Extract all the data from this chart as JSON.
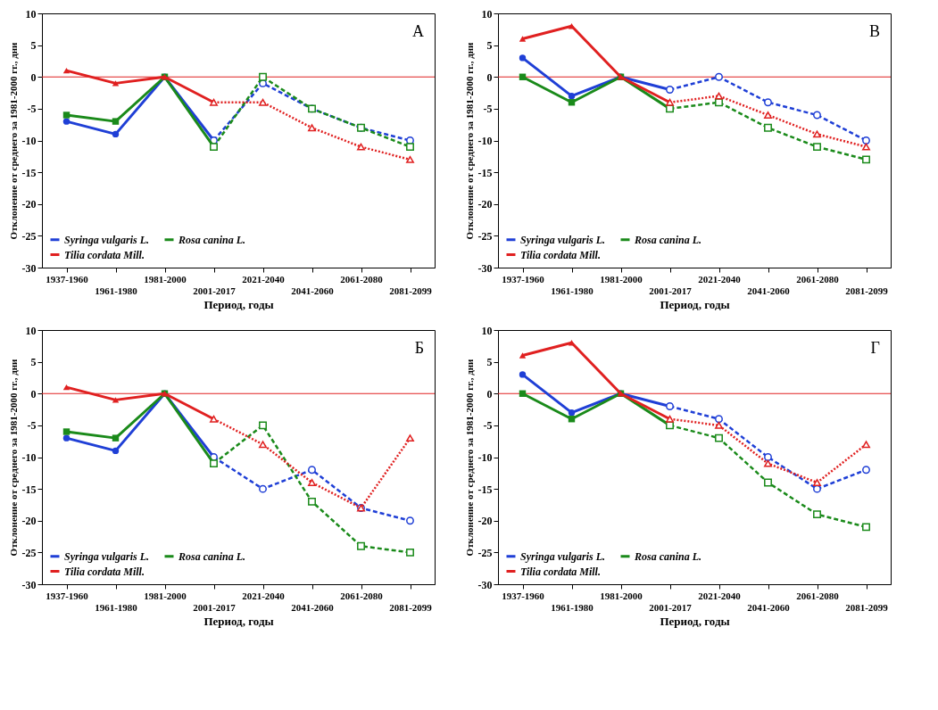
{
  "chart_data": [
    {
      "type": "line",
      "annotations": [
        "А"
      ],
      "xlabel": "Период, годы",
      "ylabel": "Отклонение от среднего за 1981-2000 гг., дни",
      "categories": [
        "1937-1960",
        "1961-1980",
        "1981-2000",
        "2001-2017",
        "2021-2040",
        "2041-2060",
        "2061-2080",
        "2081-2099"
      ],
      "ylim": [
        -30,
        10
      ],
      "yticks": [
        -30,
        -25,
        -20,
        -15,
        -10,
        -5,
        0,
        5,
        10
      ],
      "grid": false,
      "legend": "bottom left",
      "ref_lines": [
        {
          "axis": "y",
          "value": 0,
          "color": "#e02020"
        }
      ],
      "series": [
        {
          "name": "Syringa vulgaris L.",
          "color": "#1f3fd6",
          "marker": "circle",
          "line_style": "solid",
          "values": [
            -7,
            -9,
            0,
            -10,
            null,
            null,
            null,
            null
          ]
        },
        {
          "color": "#1f3fd6",
          "marker": "circle",
          "line_style": "dashed",
          "values": [
            null,
            null,
            null,
            -10,
            -1,
            -5,
            -8,
            -10
          ]
        },
        {
          "name": "Rosa canina L.",
          "color": "#1a8a1a",
          "marker": "square",
          "line_style": "solid",
          "values": [
            -6,
            -7,
            0,
            -11,
            null,
            null,
            null,
            null
          ]
        },
        {
          "color": "#1a8a1a",
          "marker": "square",
          "line_style": "dashed",
          "values": [
            null,
            null,
            null,
            -11,
            0,
            -5,
            -8,
            -11
          ]
        },
        {
          "name": "Tilia cordata Mill.",
          "color": "#e02020",
          "marker": "triangle",
          "line_style": "solid",
          "values": [
            1,
            -1,
            0,
            -4,
            null,
            null,
            null,
            null
          ]
        },
        {
          "color": "#e02020",
          "marker": "triangle",
          "line_style": "dotted",
          "values": [
            null,
            null,
            null,
            -4,
            -4,
            -8,
            -11,
            -13
          ]
        }
      ]
    },
    {
      "type": "line",
      "annotations": [
        "В"
      ],
      "xlabel": "Период, годы",
      "ylabel": "Отклонение от среднего за 1981-2000 гг., дни",
      "categories": [
        "1937-1960",
        "1961-1980",
        "1981-2000",
        "2001-2017",
        "2021-2040",
        "2041-2060",
        "2061-2080",
        "2081-2099"
      ],
      "ylim": [
        -30,
        10
      ],
      "yticks": [
        -30,
        -25,
        -20,
        -15,
        -10,
        -5,
        0,
        5,
        10
      ],
      "grid": false,
      "legend": "bottom left",
      "ref_lines": [
        {
          "axis": "y",
          "value": 0,
          "color": "#e02020"
        }
      ],
      "series": [
        {
          "name": "Syringa vulgaris L.",
          "color": "#1f3fd6",
          "marker": "circle",
          "line_style": "solid",
          "values": [
            3,
            -3,
            0,
            -2,
            null,
            null,
            null,
            null
          ]
        },
        {
          "color": "#1f3fd6",
          "marker": "circle",
          "line_style": "dashed",
          "values": [
            null,
            null,
            null,
            -2,
            0,
            -4,
            -6,
            -10
          ]
        },
        {
          "name": "Rosa canina L.",
          "color": "#1a8a1a",
          "marker": "square",
          "line_style": "solid",
          "values": [
            0,
            -4,
            0,
            -5,
            null,
            null,
            null,
            null
          ]
        },
        {
          "color": "#1a8a1a",
          "marker": "square",
          "line_style": "dashed",
          "values": [
            null,
            null,
            null,
            -5,
            -4,
            -8,
            -11,
            -13
          ]
        },
        {
          "name": "Tilia cordata Mill.",
          "color": "#e02020",
          "marker": "triangle",
          "line_style": "solid",
          "values": [
            6,
            8,
            0,
            -4,
            null,
            null,
            null,
            null
          ]
        },
        {
          "color": "#e02020",
          "marker": "triangle",
          "line_style": "dotted",
          "values": [
            null,
            null,
            null,
            -4,
            -3,
            -6,
            -9,
            -11
          ]
        }
      ]
    },
    {
      "type": "line",
      "annotations": [
        "Б"
      ],
      "xlabel": "Период, годы",
      "ylabel": "Отклонение от среднего за 1981-2000 гг., дни",
      "categories": [
        "1937-1960",
        "1961-1980",
        "1981-2000",
        "2001-2017",
        "2021-2040",
        "2041-2060",
        "2061-2080",
        "2081-2099"
      ],
      "ylim": [
        -30,
        10
      ],
      "yticks": [
        -30,
        -25,
        -20,
        -15,
        -10,
        -5,
        0,
        5,
        10
      ],
      "grid": false,
      "legend": "bottom left",
      "ref_lines": [
        {
          "axis": "y",
          "value": 0,
          "color": "#e02020"
        }
      ],
      "series": [
        {
          "name": "Syringa vulgaris L.",
          "color": "#1f3fd6",
          "marker": "circle",
          "line_style": "solid",
          "values": [
            -7,
            -9,
            0,
            -10,
            null,
            null,
            null,
            null
          ]
        },
        {
          "color": "#1f3fd6",
          "marker": "circle",
          "line_style": "dashed",
          "values": [
            null,
            null,
            null,
            -10,
            -15,
            -12,
            -18,
            -20
          ]
        },
        {
          "name": "Rosa canina L.",
          "color": "#1a8a1a",
          "marker": "square",
          "line_style": "solid",
          "values": [
            -6,
            -7,
            0,
            -11,
            null,
            null,
            null,
            null
          ]
        },
        {
          "color": "#1a8a1a",
          "marker": "square",
          "line_style": "dashed",
          "values": [
            null,
            null,
            null,
            -11,
            -5,
            -17,
            -24,
            -25
          ]
        },
        {
          "name": "Tilia cordata Mill.",
          "color": "#e02020",
          "marker": "triangle",
          "line_style": "solid",
          "values": [
            1,
            -1,
            0,
            -4,
            null,
            null,
            null,
            null
          ]
        },
        {
          "color": "#e02020",
          "marker": "triangle",
          "line_style": "dotted",
          "values": [
            null,
            null,
            null,
            -4,
            -8,
            -14,
            -18,
            -7
          ]
        }
      ]
    },
    {
      "type": "line",
      "annotations": [
        "Г"
      ],
      "xlabel": "Период, годы",
      "ylabel": "Отклонение от среднего за 1981-2000 гг., дни",
      "categories": [
        "1937-1960",
        "1961-1980",
        "1981-2000",
        "2001-2017",
        "2021-2040",
        "2041-2060",
        "2061-2080",
        "2081-2099"
      ],
      "ylim": [
        -30,
        10
      ],
      "yticks": [
        -30,
        -25,
        -20,
        -15,
        -10,
        -5,
        0,
        5,
        10
      ],
      "grid": false,
      "legend": "bottom left",
      "ref_lines": [
        {
          "axis": "y",
          "value": 0,
          "color": "#e02020"
        }
      ],
      "series": [
        {
          "name": "Syringa vulgaris L.",
          "color": "#1f3fd6",
          "marker": "circle",
          "line_style": "solid",
          "values": [
            3,
            -3,
            0,
            -2,
            null,
            null,
            null,
            null
          ]
        },
        {
          "color": "#1f3fd6",
          "marker": "circle",
          "line_style": "dashed",
          "values": [
            null,
            null,
            null,
            -2,
            -4,
            -10,
            -15,
            -12
          ]
        },
        {
          "name": "Rosa canina L.",
          "color": "#1a8a1a",
          "marker": "square",
          "line_style": "solid",
          "values": [
            0,
            -4,
            0,
            -5,
            null,
            null,
            null,
            null
          ]
        },
        {
          "color": "#1a8a1a",
          "marker": "square",
          "line_style": "dashed",
          "values": [
            null,
            null,
            null,
            -5,
            -7,
            -14,
            -19,
            -21
          ]
        },
        {
          "name": "Tilia cordata Mill.",
          "color": "#e02020",
          "marker": "triangle",
          "line_style": "solid",
          "values": [
            6,
            8,
            0,
            -4,
            null,
            null,
            null,
            null
          ]
        },
        {
          "color": "#e02020",
          "marker": "triangle",
          "line_style": "dotted",
          "values": [
            null,
            null,
            null,
            -4,
            -5,
            -11,
            -14,
            -8
          ]
        }
      ]
    }
  ]
}
